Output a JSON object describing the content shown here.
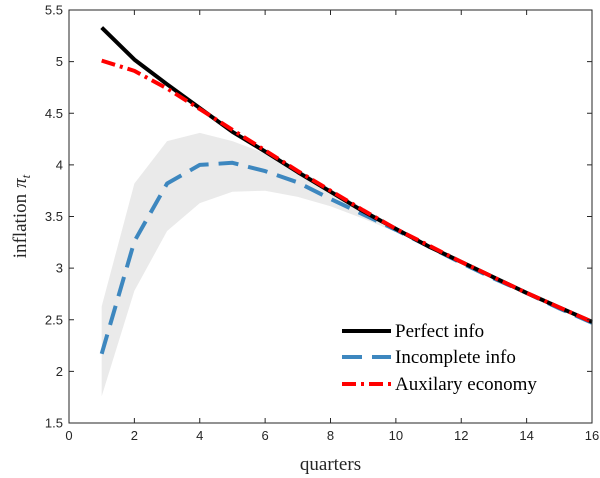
{
  "chart_data": {
    "type": "line",
    "xlabel": "quarters",
    "ylabel_text": "inflation",
    "ylabel_symbol": "π",
    "ylabel_subscript": "t",
    "xlim": [
      0,
      16
    ],
    "ylim": [
      1.5,
      5.5
    ],
    "xticks": [
      0,
      2,
      4,
      6,
      8,
      10,
      12,
      14,
      16
    ],
    "yticks": [
      1.5,
      2,
      2.5,
      3,
      3.5,
      4,
      4.5,
      5,
      5.5
    ],
    "xtick_labels": [
      "0",
      "2",
      "4",
      "6",
      "8",
      "10",
      "12",
      "14",
      "16"
    ],
    "ytick_labels": [
      "1.5",
      "2",
      "2.5",
      "3",
      "3.5",
      "4",
      "4.5",
      "5",
      "5.5"
    ],
    "grid": false,
    "legend_position": "bottom-right",
    "x": [
      1,
      2,
      3,
      4,
      5,
      6,
      7,
      8,
      9,
      10,
      11,
      12,
      13,
      14,
      15,
      16
    ],
    "series": [
      {
        "name": "Perfect info",
        "color": "#000000",
        "style": "solid",
        "values": [
          5.33,
          5.02,
          4.78,
          4.55,
          4.32,
          4.13,
          3.93,
          3.74,
          3.55,
          3.38,
          3.21,
          3.06,
          2.91,
          2.76,
          2.62,
          2.48
        ]
      },
      {
        "name": "Incomplete info",
        "color": "#3d87bf",
        "style": "dashed",
        "values": [
          2.17,
          3.26,
          3.82,
          4.0,
          4.02,
          3.94,
          3.83,
          3.67,
          3.52,
          3.37,
          3.21,
          3.05,
          2.9,
          2.76,
          2.61,
          2.47
        ]
      },
      {
        "name": "Auxilary economy",
        "color": "#ff0000",
        "style": "dashdot",
        "values": [
          5.01,
          4.91,
          4.74,
          4.54,
          4.34,
          4.14,
          3.94,
          3.75,
          3.56,
          3.38,
          3.22,
          3.06,
          2.91,
          2.76,
          2.62,
          2.48
        ]
      }
    ],
    "band": {
      "color": "#eaeaea",
      "lower": [
        1.76,
        2.78,
        3.36,
        3.63,
        3.74,
        3.75,
        3.69,
        3.6,
        3.48,
        3.35,
        3.2,
        3.05,
        2.9,
        2.75,
        2.61,
        2.47
      ],
      "upper": [
        2.63,
        3.82,
        4.23,
        4.31,
        4.23,
        4.11,
        3.96,
        3.77,
        3.58,
        3.4,
        3.23,
        3.07,
        2.92,
        2.77,
        2.62,
        2.48
      ]
    }
  }
}
